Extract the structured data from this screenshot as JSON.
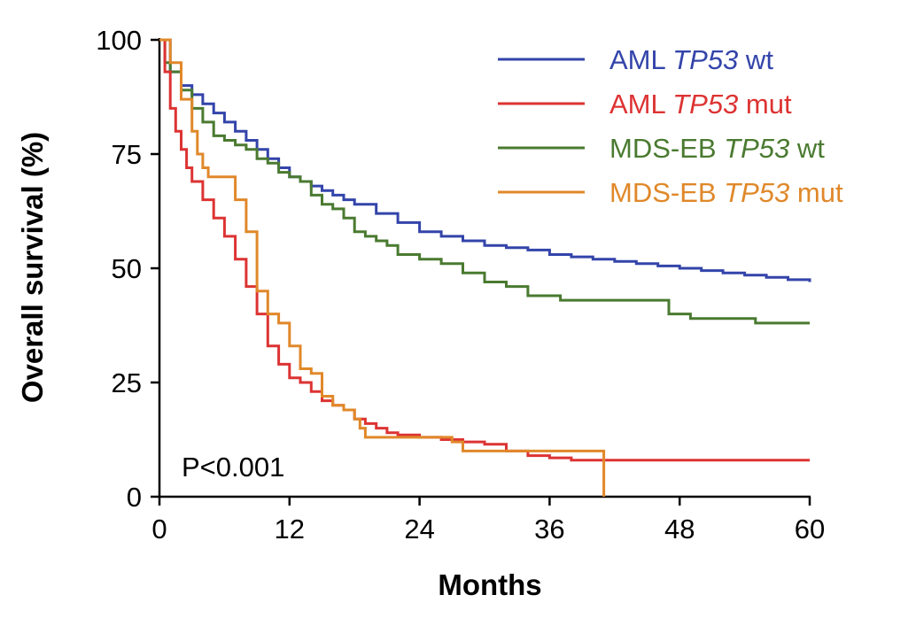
{
  "chart_data": {
    "type": "line",
    "subtype": "kaplan-meier step",
    "title": "",
    "xlabel": "Months",
    "ylabel": "Overall survival (%)",
    "xlim": [
      0,
      60
    ],
    "ylim": [
      0,
      100
    ],
    "xticks": [
      0,
      12,
      24,
      36,
      48,
      60
    ],
    "yticks": [
      0,
      25,
      50,
      75,
      100
    ],
    "grid": false,
    "legend_position": "top-right",
    "annotation": "P<0.001",
    "series": [
      {
        "name": "AML TP53 wt",
        "name_prefix": "AML",
        "gene": "TP53",
        "status": "wt",
        "color": "#3344aa",
        "points": [
          [
            0,
            100
          ],
          [
            1,
            93
          ],
          [
            2,
            90
          ],
          [
            3,
            88
          ],
          [
            4,
            86
          ],
          [
            5,
            84
          ],
          [
            6,
            82
          ],
          [
            7,
            80
          ],
          [
            8,
            78
          ],
          [
            9,
            76
          ],
          [
            10,
            74
          ],
          [
            11,
            72
          ],
          [
            12,
            70
          ],
          [
            13,
            69
          ],
          [
            14,
            68
          ],
          [
            15,
            67
          ],
          [
            16,
            66
          ],
          [
            17,
            65
          ],
          [
            18,
            64
          ],
          [
            20,
            62
          ],
          [
            22,
            60
          ],
          [
            24,
            58
          ],
          [
            26,
            57
          ],
          [
            28,
            56
          ],
          [
            30,
            55
          ],
          [
            32,
            54.5
          ],
          [
            34,
            54
          ],
          [
            36,
            53
          ],
          [
            38,
            52.5
          ],
          [
            40,
            52
          ],
          [
            42,
            51.5
          ],
          [
            44,
            51
          ],
          [
            46,
            50.5
          ],
          [
            48,
            50
          ],
          [
            50,
            49.5
          ],
          [
            52,
            49
          ],
          [
            54,
            48.5
          ],
          [
            56,
            48
          ],
          [
            58,
            47.5
          ],
          [
            60,
            47
          ]
        ]
      },
      {
        "name": "AML TP53 mut",
        "name_prefix": "AML",
        "gene": "TP53",
        "status": "mut",
        "color": "#dd3333",
        "points": [
          [
            0,
            100
          ],
          [
            0.5,
            93
          ],
          [
            1,
            85
          ],
          [
            1.5,
            80
          ],
          [
            2,
            76
          ],
          [
            2.5,
            72
          ],
          [
            3,
            69
          ],
          [
            4,
            65
          ],
          [
            5,
            61
          ],
          [
            6,
            57
          ],
          [
            7,
            52
          ],
          [
            8,
            46
          ],
          [
            9,
            40
          ],
          [
            10,
            33
          ],
          [
            11,
            29
          ],
          [
            12,
            26
          ],
          [
            13,
            25
          ],
          [
            14,
            23
          ],
          [
            15,
            21
          ],
          [
            16,
            20
          ],
          [
            17,
            19
          ],
          [
            18,
            17
          ],
          [
            19,
            16
          ],
          [
            20,
            15
          ],
          [
            21,
            14
          ],
          [
            22,
            13.5
          ],
          [
            24,
            13
          ],
          [
            26,
            12.5
          ],
          [
            28,
            12
          ],
          [
            30,
            11.5
          ],
          [
            32,
            10
          ],
          [
            34,
            9
          ],
          [
            36,
            8.5
          ],
          [
            38,
            8
          ],
          [
            40,
            8
          ],
          [
            60,
            8
          ]
        ]
      },
      {
        "name": "MDS-EB TP53 wt",
        "name_prefix": "MDS-EB",
        "gene": "TP53",
        "status": "wt",
        "color": "#4a7a30",
        "points": [
          [
            0,
            100
          ],
          [
            0.5,
            95
          ],
          [
            1,
            93
          ],
          [
            2,
            89
          ],
          [
            3,
            85
          ],
          [
            4,
            82
          ],
          [
            5,
            79
          ],
          [
            6,
            78
          ],
          [
            7,
            77
          ],
          [
            8,
            76
          ],
          [
            9,
            74
          ],
          [
            10,
            73
          ],
          [
            11,
            71
          ],
          [
            12,
            70
          ],
          [
            13,
            69
          ],
          [
            14,
            66
          ],
          [
            15,
            64
          ],
          [
            16,
            63
          ],
          [
            17,
            61
          ],
          [
            18,
            58
          ],
          [
            19,
            57
          ],
          [
            20,
            56
          ],
          [
            21,
            55
          ],
          [
            22,
            53
          ],
          [
            24,
            52
          ],
          [
            26,
            51
          ],
          [
            28,
            49
          ],
          [
            30,
            47
          ],
          [
            32,
            46
          ],
          [
            34,
            44
          ],
          [
            36,
            44
          ],
          [
            37,
            43
          ],
          [
            38,
            43
          ],
          [
            46,
            43
          ],
          [
            47,
            40
          ],
          [
            48,
            40
          ],
          [
            49,
            39
          ],
          [
            54,
            39
          ],
          [
            55,
            38
          ],
          [
            60,
            38
          ]
        ]
      },
      {
        "name": "MDS-EB TP53 mut",
        "name_prefix": "MDS-EB",
        "gene": "TP53",
        "status": "mut",
        "color": "#e0882a",
        "points": [
          [
            0,
            100
          ],
          [
            0.8,
            100
          ],
          [
            1,
            95
          ],
          [
            2,
            87
          ],
          [
            3,
            80
          ],
          [
            3.5,
            75
          ],
          [
            4,
            72
          ],
          [
            4.5,
            70
          ],
          [
            6,
            70
          ],
          [
            7,
            65
          ],
          [
            8,
            58
          ],
          [
            9,
            45
          ],
          [
            10,
            40
          ],
          [
            11,
            38
          ],
          [
            12,
            33
          ],
          [
            13,
            28
          ],
          [
            14,
            27
          ],
          [
            15,
            22
          ],
          [
            16,
            20
          ],
          [
            17,
            19
          ],
          [
            18,
            17
          ],
          [
            18.5,
            15
          ],
          [
            19,
            13
          ],
          [
            20,
            13
          ],
          [
            24,
            13
          ],
          [
            27,
            12
          ],
          [
            28,
            10
          ],
          [
            40,
            10
          ],
          [
            41,
            10
          ],
          [
            41,
            0
          ]
        ]
      }
    ]
  }
}
